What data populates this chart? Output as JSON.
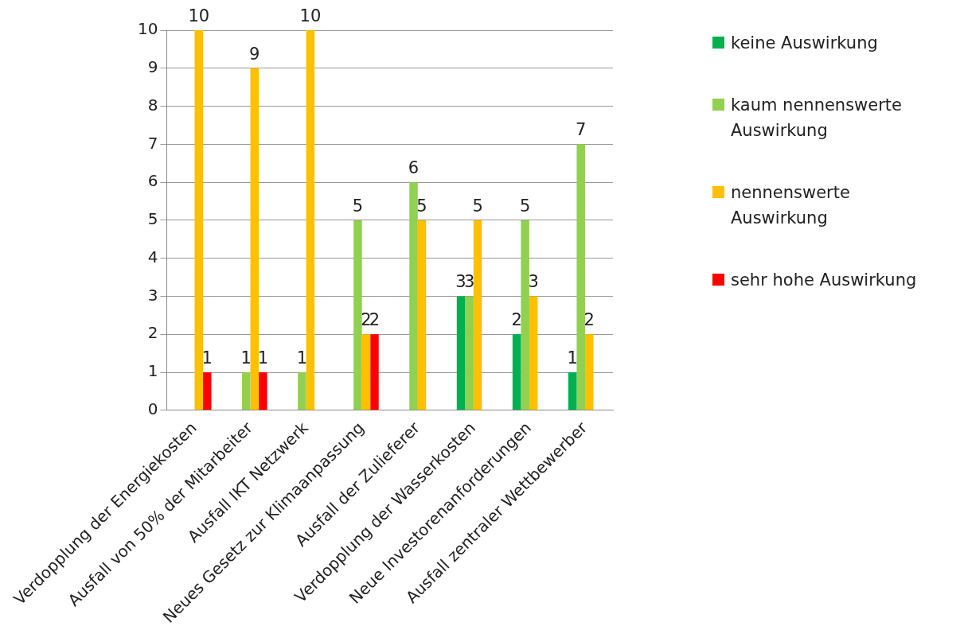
{
  "chart_data": {
    "type": "bar",
    "categories": [
      "Verdopplung der Energiekosten",
      "Ausfall von 50% der Mitarbeiter",
      "Ausfall IKT Netzwerk",
      "Neues Gesetz zur Klimaanpassung",
      "Ausfall der Zulieferer",
      "Verdopplung der Wasserkosten",
      "Neue Investorenanforderungen",
      "Ausfall zentraler Wettbewerber"
    ],
    "series": [
      {
        "name": "keine Auswirkung",
        "color": "#00b050",
        "values": [
          null,
          null,
          null,
          null,
          null,
          3,
          2,
          1
        ]
      },
      {
        "name": "kaum nennenswerte Auswirkung",
        "color": "#92d050",
        "values": [
          null,
          1,
          1,
          5,
          6,
          3,
          5,
          7
        ]
      },
      {
        "name": "nennenswerte Auswirkung",
        "color": "#ffc000",
        "values": [
          10,
          9,
          10,
          2,
          5,
          5,
          3,
          2
        ]
      },
      {
        "name": "sehr hohe Auswirkung",
        "color": "#ff0000",
        "values": [
          1,
          1,
          null,
          2,
          null,
          null,
          null,
          null
        ]
      }
    ],
    "ylim": [
      0,
      10
    ],
    "yticks": [
      0,
      1,
      2,
      3,
      4,
      5,
      6,
      7,
      8,
      9,
      10
    ],
    "grid": "y",
    "legend": "right",
    "data_labels": true
  }
}
